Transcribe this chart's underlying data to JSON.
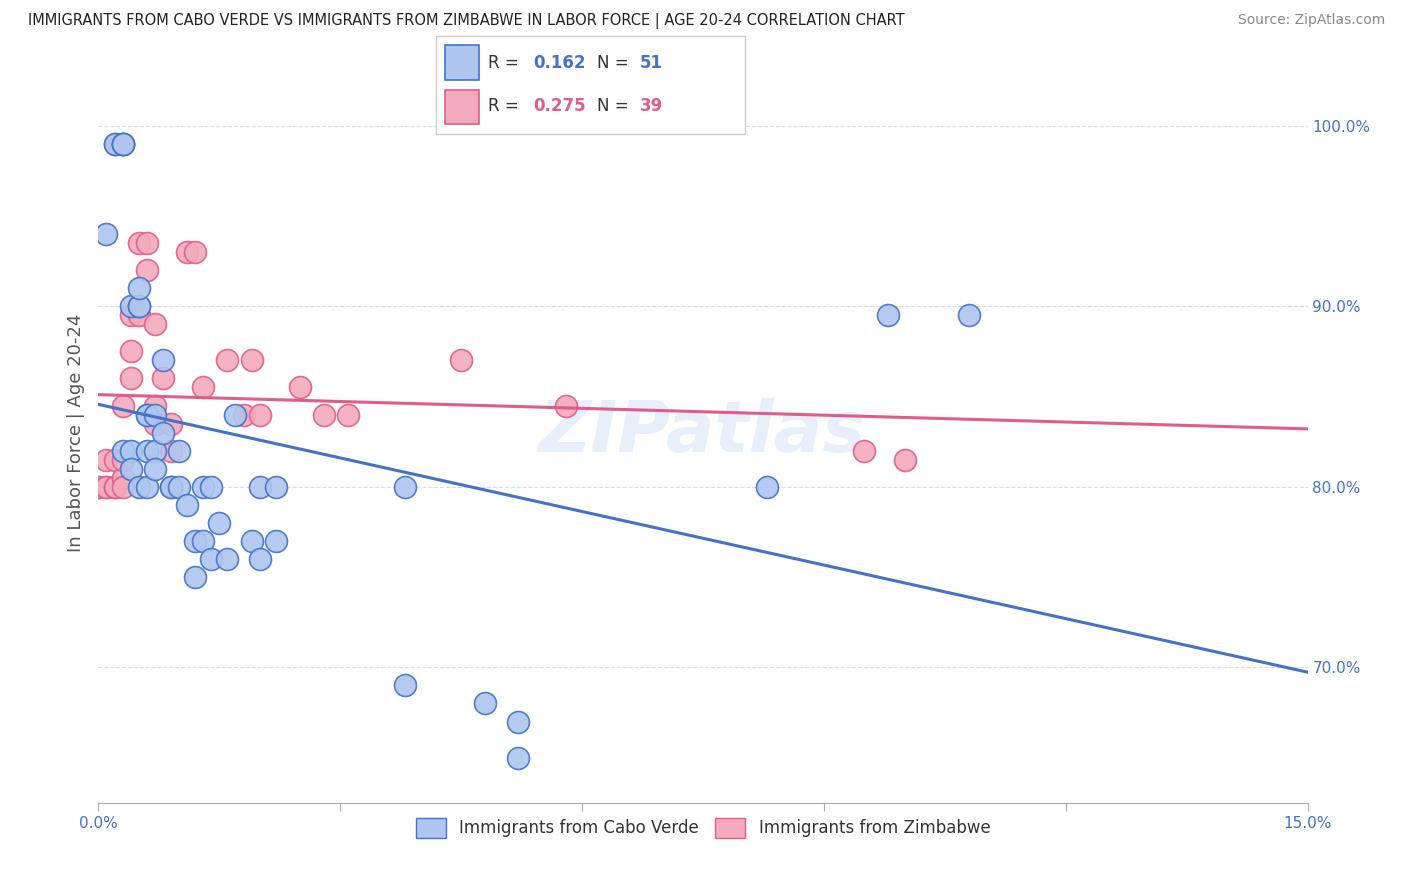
{
  "title": "IMMIGRANTS FROM CABO VERDE VS IMMIGRANTS FROM ZIMBABWE IN LABOR FORCE | AGE 20-24 CORRELATION CHART",
  "source": "Source: ZipAtlas.com",
  "ylabel": "In Labor Force | Age 20-24",
  "xlim": [
    0.0,
    0.15
  ],
  "ylim": [
    0.625,
    1.035
  ],
  "xticks": [
    0.0,
    0.03,
    0.06,
    0.09,
    0.12,
    0.15
  ],
  "xtick_labels": [
    "0.0%",
    "",
    "",
    "",
    "",
    "15.0%"
  ],
  "yticks": [
    0.7,
    0.8,
    0.9,
    1.0
  ],
  "ytick_labels": [
    "70.0%",
    "80.0%",
    "90.0%",
    "100.0%"
  ],
  "cabo_verde_R": 0.162,
  "cabo_verde_N": 51,
  "zimbabwe_R": 0.275,
  "zimbabwe_N": 39,
  "cabo_verde_color": "#aec6f0",
  "zimbabwe_color": "#f4aabd",
  "cabo_verde_line_color": "#4472c4",
  "zimbabwe_line_color": "#e05c8a",
  "watermark": "ZIPatlas",
  "legend_cabo_label": "Immigrants from Cabo Verde",
  "legend_zimbabwe_label": "Immigrants from Zimbabwe",
  "cabo_verde_x": [
    0.001,
    0.002,
    0.002,
    0.003,
    0.003,
    0.003,
    0.003,
    0.003,
    0.004,
    0.004,
    0.004,
    0.005,
    0.005,
    0.005,
    0.005,
    0.006,
    0.006,
    0.006,
    0.006,
    0.007,
    0.007,
    0.007,
    0.008,
    0.008,
    0.009,
    0.009,
    0.01,
    0.01,
    0.011,
    0.012,
    0.012,
    0.013,
    0.013,
    0.014,
    0.014,
    0.015,
    0.016,
    0.017,
    0.019,
    0.02,
    0.02,
    0.022,
    0.022,
    0.038,
    0.038,
    0.048,
    0.052,
    0.052,
    0.083,
    0.098,
    0.108
  ],
  "cabo_verde_y": [
    0.94,
    0.99,
    0.99,
    0.99,
    0.99,
    0.99,
    0.99,
    0.82,
    0.9,
    0.82,
    0.81,
    0.9,
    0.9,
    0.91,
    0.8,
    0.84,
    0.84,
    0.82,
    0.8,
    0.84,
    0.82,
    0.81,
    0.83,
    0.87,
    0.8,
    0.8,
    0.82,
    0.8,
    0.79,
    0.75,
    0.77,
    0.8,
    0.77,
    0.8,
    0.76,
    0.78,
    0.76,
    0.84,
    0.77,
    0.8,
    0.76,
    0.8,
    0.77,
    0.8,
    0.69,
    0.68,
    0.67,
    0.65,
    0.8,
    0.895,
    0.895
  ],
  "zimbabwe_x": [
    0.0,
    0.0,
    0.001,
    0.001,
    0.001,
    0.002,
    0.002,
    0.002,
    0.003,
    0.003,
    0.003,
    0.003,
    0.004,
    0.004,
    0.004,
    0.005,
    0.005,
    0.006,
    0.006,
    0.007,
    0.007,
    0.007,
    0.008,
    0.009,
    0.009,
    0.011,
    0.012,
    0.013,
    0.016,
    0.018,
    0.019,
    0.02,
    0.025,
    0.028,
    0.031,
    0.045,
    0.058,
    0.095,
    0.1
  ],
  "zimbabwe_y": [
    0.8,
    0.8,
    0.8,
    0.8,
    0.815,
    0.8,
    0.8,
    0.815,
    0.805,
    0.815,
    0.8,
    0.845,
    0.86,
    0.875,
    0.895,
    0.895,
    0.935,
    0.92,
    0.935,
    0.89,
    0.835,
    0.845,
    0.86,
    0.82,
    0.835,
    0.93,
    0.93,
    0.855,
    0.87,
    0.84,
    0.87,
    0.84,
    0.855,
    0.84,
    0.84,
    0.87,
    0.845,
    0.82,
    0.815
  ]
}
